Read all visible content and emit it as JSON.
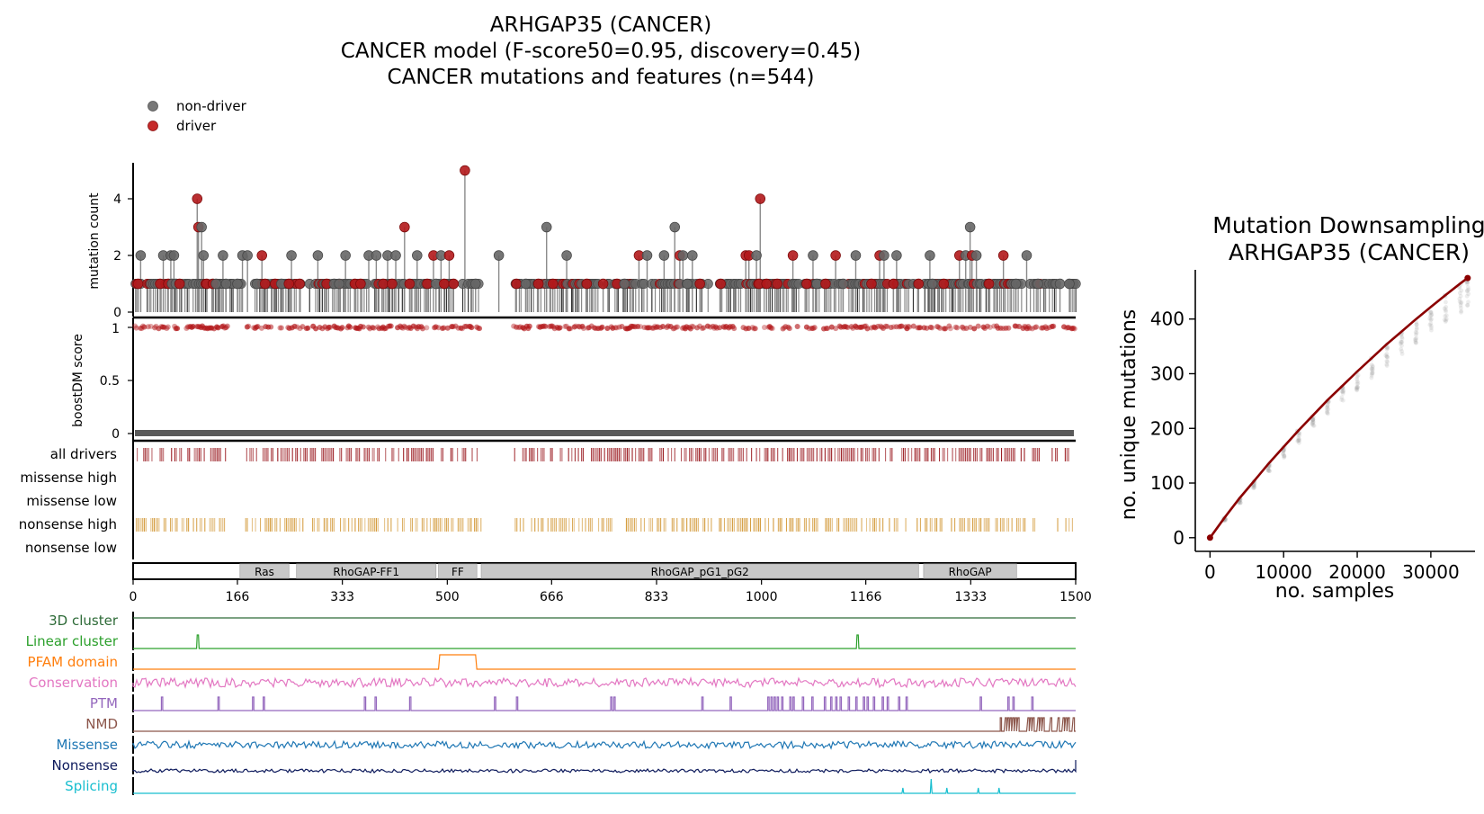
{
  "main_title": {
    "line1": "ARHGAP35 (CANCER)",
    "line2": "CANCER model (F-score50=0.95, discovery=0.45)",
    "line3": "CANCER mutations and features (n=544)"
  },
  "legend": {
    "items": [
      {
        "label": "non-driver",
        "color": "#777777"
      },
      {
        "label": "driver",
        "color": "#c62a2a"
      }
    ]
  },
  "colors": {
    "driver": "#b3181b",
    "nondriver": "#666666",
    "stem": "#8a8a8a",
    "alldrivers": "#9b1c22",
    "nonsense_high": "#d39a3a",
    "domain_fill": "#c8c8c8",
    "downsampling_line": "#8b0000"
  },
  "chart_data": [
    {
      "type": "scatter",
      "name": "mutation-lollipop",
      "ylabel": "mutation count",
      "ylim": [
        0,
        5
      ],
      "yticks": [
        "0",
        "2",
        "4"
      ],
      "protein_length": 1500,
      "highlight_points": [
        {
          "pos": 8,
          "count": 1,
          "driver": true
        },
        {
          "pos": 12,
          "count": 2,
          "driver": false
        },
        {
          "pos": 43,
          "count": 1,
          "driver": true
        },
        {
          "pos": 48,
          "count": 2,
          "driver": false
        },
        {
          "pos": 56,
          "count": 1,
          "driver": true
        },
        {
          "pos": 60,
          "count": 2,
          "driver": false
        },
        {
          "pos": 62,
          "count": 1,
          "driver": false
        },
        {
          "pos": 65,
          "count": 2,
          "driver": false
        },
        {
          "pos": 68,
          "count": 1,
          "driver": false
        },
        {
          "pos": 74,
          "count": 1,
          "driver": true
        },
        {
          "pos": 102,
          "count": 4,
          "driver": true
        },
        {
          "pos": 104,
          "count": 3,
          "driver": true
        },
        {
          "pos": 109,
          "count": 3,
          "driver": false
        },
        {
          "pos": 112,
          "count": 2,
          "driver": false
        },
        {
          "pos": 117,
          "count": 1,
          "driver": true
        },
        {
          "pos": 127,
          "count": 1,
          "driver": true
        },
        {
          "pos": 132,
          "count": 1,
          "driver": false
        },
        {
          "pos": 143,
          "count": 2,
          "driver": false
        },
        {
          "pos": 148,
          "count": 1,
          "driver": false
        },
        {
          "pos": 166,
          "count": 1,
          "driver": false
        },
        {
          "pos": 174,
          "count": 2,
          "driver": false
        },
        {
          "pos": 182,
          "count": 2,
          "driver": false
        },
        {
          "pos": 197,
          "count": 1,
          "driver": false
        },
        {
          "pos": 205,
          "count": 2,
          "driver": true
        },
        {
          "pos": 210,
          "count": 1,
          "driver": true
        },
        {
          "pos": 226,
          "count": 1,
          "driver": true
        },
        {
          "pos": 236,
          "count": 1,
          "driver": false
        },
        {
          "pos": 248,
          "count": 1,
          "driver": true
        },
        {
          "pos": 252,
          "count": 2,
          "driver": false
        },
        {
          "pos": 265,
          "count": 1,
          "driver": true
        },
        {
          "pos": 294,
          "count": 2,
          "driver": false
        },
        {
          "pos": 308,
          "count": 1,
          "driver": true
        },
        {
          "pos": 320,
          "count": 1,
          "driver": false
        },
        {
          "pos": 328,
          "count": 1,
          "driver": false
        },
        {
          "pos": 338,
          "count": 2,
          "driver": false
        },
        {
          "pos": 353,
          "count": 1,
          "driver": true
        },
        {
          "pos": 362,
          "count": 1,
          "driver": true
        },
        {
          "pos": 375,
          "count": 2,
          "driver": false
        },
        {
          "pos": 387,
          "count": 2,
          "driver": false
        },
        {
          "pos": 398,
          "count": 1,
          "driver": true
        },
        {
          "pos": 405,
          "count": 2,
          "driver": false
        },
        {
          "pos": 412,
          "count": 1,
          "driver": true
        },
        {
          "pos": 418,
          "count": 2,
          "driver": false
        },
        {
          "pos": 432,
          "count": 3,
          "driver": true
        },
        {
          "pos": 440,
          "count": 1,
          "driver": true
        },
        {
          "pos": 452,
          "count": 2,
          "driver": false
        },
        {
          "pos": 468,
          "count": 1,
          "driver": true
        },
        {
          "pos": 478,
          "count": 2,
          "driver": true
        },
        {
          "pos": 482,
          "count": 1,
          "driver": false
        },
        {
          "pos": 490,
          "count": 2,
          "driver": false
        },
        {
          "pos": 495,
          "count": 1,
          "driver": true
        },
        {
          "pos": 503,
          "count": 2,
          "driver": true
        },
        {
          "pos": 510,
          "count": 1,
          "driver": true
        },
        {
          "pos": 528,
          "count": 5,
          "driver": true
        },
        {
          "pos": 545,
          "count": 1,
          "driver": false
        },
        {
          "pos": 582,
          "count": 2,
          "driver": false
        },
        {
          "pos": 610,
          "count": 1,
          "driver": true
        },
        {
          "pos": 625,
          "count": 1,
          "driver": false
        },
        {
          "pos": 645,
          "count": 1,
          "driver": true
        },
        {
          "pos": 658,
          "count": 3,
          "driver": false
        },
        {
          "pos": 668,
          "count": 1,
          "driver": true
        },
        {
          "pos": 690,
          "count": 2,
          "driver": false
        },
        {
          "pos": 722,
          "count": 1,
          "driver": true
        },
        {
          "pos": 748,
          "count": 1,
          "driver": true
        },
        {
          "pos": 770,
          "count": 1,
          "driver": true
        },
        {
          "pos": 782,
          "count": 1,
          "driver": false
        },
        {
          "pos": 805,
          "count": 2,
          "driver": true
        },
        {
          "pos": 818,
          "count": 2,
          "driver": false
        },
        {
          "pos": 845,
          "count": 2,
          "driver": false
        },
        {
          "pos": 862,
          "count": 3,
          "driver": false
        },
        {
          "pos": 870,
          "count": 2,
          "driver": true
        },
        {
          "pos": 875,
          "count": 2,
          "driver": false
        },
        {
          "pos": 882,
          "count": 1,
          "driver": false
        },
        {
          "pos": 890,
          "count": 2,
          "driver": false
        },
        {
          "pos": 902,
          "count": 1,
          "driver": true
        },
        {
          "pos": 935,
          "count": 1,
          "driver": true
        },
        {
          "pos": 975,
          "count": 2,
          "driver": true
        },
        {
          "pos": 980,
          "count": 2,
          "driver": true
        },
        {
          "pos": 992,
          "count": 2,
          "driver": false
        },
        {
          "pos": 996,
          "count": 1,
          "driver": true
        },
        {
          "pos": 998,
          "count": 4,
          "driver": true
        },
        {
          "pos": 1008,
          "count": 1,
          "driver": true
        },
        {
          "pos": 1025,
          "count": 1,
          "driver": true
        },
        {
          "pos": 1050,
          "count": 2,
          "driver": true
        },
        {
          "pos": 1072,
          "count": 1,
          "driver": true
        },
        {
          "pos": 1082,
          "count": 2,
          "driver": false
        },
        {
          "pos": 1088,
          "count": 1,
          "driver": false
        },
        {
          "pos": 1102,
          "count": 1,
          "driver": true
        },
        {
          "pos": 1118,
          "count": 2,
          "driver": true
        },
        {
          "pos": 1130,
          "count": 1,
          "driver": false
        },
        {
          "pos": 1150,
          "count": 2,
          "driver": false
        },
        {
          "pos": 1175,
          "count": 1,
          "driver": true
        },
        {
          "pos": 1188,
          "count": 2,
          "driver": true
        },
        {
          "pos": 1195,
          "count": 2,
          "driver": false
        },
        {
          "pos": 1210,
          "count": 1,
          "driver": true
        },
        {
          "pos": 1215,
          "count": 2,
          "driver": false
        },
        {
          "pos": 1250,
          "count": 1,
          "driver": true
        },
        {
          "pos": 1268,
          "count": 2,
          "driver": false
        },
        {
          "pos": 1272,
          "count": 1,
          "driver": false
        },
        {
          "pos": 1290,
          "count": 1,
          "driver": true
        },
        {
          "pos": 1315,
          "count": 2,
          "driver": true
        },
        {
          "pos": 1325,
          "count": 2,
          "driver": false
        },
        {
          "pos": 1332,
          "count": 3,
          "driver": false
        },
        {
          "pos": 1335,
          "count": 2,
          "driver": true
        },
        {
          "pos": 1342,
          "count": 2,
          "driver": false
        },
        {
          "pos": 1362,
          "count": 1,
          "driver": true
        },
        {
          "pos": 1385,
          "count": 2,
          "driver": true
        },
        {
          "pos": 1405,
          "count": 1,
          "driver": false
        },
        {
          "pos": 1422,
          "count": 2,
          "driver": false
        },
        {
          "pos": 1440,
          "count": 1,
          "driver": false
        },
        {
          "pos": 1475,
          "count": 1,
          "driver": false
        },
        {
          "pos": 1490,
          "count": 1,
          "driver": false
        }
      ]
    },
    {
      "type": "scatter",
      "name": "boostdm-score",
      "ylabel": "boostDM score",
      "ylim": [
        0,
        1
      ],
      "yticks": [
        "0",
        "0.5",
        "1"
      ]
    },
    {
      "type": "table",
      "name": "mutation-class-tracks",
      "rows": [
        "all drivers",
        "missense high",
        "missense low",
        "nonsense high",
        "nonsense low"
      ]
    },
    {
      "type": "bar",
      "name": "protein-domains",
      "domains": [
        {
          "label": "Ras",
          "start": 170,
          "end": 248
        },
        {
          "label": "RhoGAP-FF1",
          "start": 260,
          "end": 482
        },
        {
          "label": "FF",
          "start": 486,
          "end": 547
        },
        {
          "label": "RhoGAP_pG1_pG2",
          "start": 554,
          "end": 1250
        },
        {
          "label": "RhoGAP",
          "start": 1258,
          "end": 1406
        }
      ],
      "xlim": [
        0,
        1500
      ],
      "xticks": [
        "0",
        "166",
        "333",
        "500",
        "666",
        "833",
        "1000",
        "1166",
        "1333",
        "1500"
      ]
    },
    {
      "type": "line",
      "name": "feature-tracks",
      "tracks": [
        {
          "label": "3D cluster",
          "color": "#2e6b38"
        },
        {
          "label": "Linear cluster",
          "color": "#2ca02c"
        },
        {
          "label": "PFAM domain",
          "color": "#ff7f0e"
        },
        {
          "label": "Conservation",
          "color": "#e377c2"
        },
        {
          "label": "PTM",
          "color": "#9467bd"
        },
        {
          "label": "NMD",
          "color": "#8c564b"
        },
        {
          "label": "Missense",
          "color": "#1f77b4"
        },
        {
          "label": "Nonsense",
          "color": "#0d1a5c"
        },
        {
          "label": "Splicing",
          "color": "#17becf"
        }
      ],
      "linear_cluster_peaks": [
        102,
        1152
      ],
      "pfam_region": [
        486,
        547
      ],
      "ptm_sites": [
        45,
        135,
        190,
        207,
        368,
        385,
        440,
        575,
        610,
        760,
        765,
        905,
        950,
        1010,
        1015,
        1020,
        1025,
        1032,
        1045,
        1050,
        1065,
        1080,
        1100,
        1110,
        1118,
        1125,
        1138,
        1150,
        1162,
        1168,
        1178,
        1192,
        1200,
        1218,
        1230,
        1348,
        1392,
        1400,
        1430
      ],
      "nmd_range": [
        1380,
        1500
      ],
      "splicing_peaks": [
        1225,
        1270,
        1295,
        1345,
        1378
      ]
    },
    {
      "type": "line",
      "name": "mutation-downsampling",
      "title": "Mutation Downsampling\nARHGAP35 (CANCER)",
      "xlabel": "no. samples",
      "ylabel": "no. unique mutations",
      "xlim": [
        -2000,
        36000
      ],
      "ylim": [
        -25,
        490
      ],
      "xticks": [
        0,
        10000,
        20000,
        30000
      ],
      "xtick_labels": [
        "0",
        "10000",
        "20000",
        "30000"
      ],
      "yticks": [
        0,
        100,
        200,
        300,
        400
      ],
      "ytick_labels": [
        "0",
        "100",
        "200",
        "300",
        "400"
      ],
      "series": [
        {
          "x": [
            0,
            2000,
            4000,
            6000,
            8000,
            10000,
            12000,
            14000,
            16000,
            18000,
            20000,
            22000,
            24000,
            26000,
            28000,
            30000,
            32000,
            34000,
            35000
          ],
          "values": [
            0,
            37,
            72,
            104,
            136,
            166,
            196,
            224,
            252,
            278,
            304,
            329,
            354,
            377,
            400,
            422,
            444,
            465,
            475
          ]
        }
      ]
    }
  ]
}
